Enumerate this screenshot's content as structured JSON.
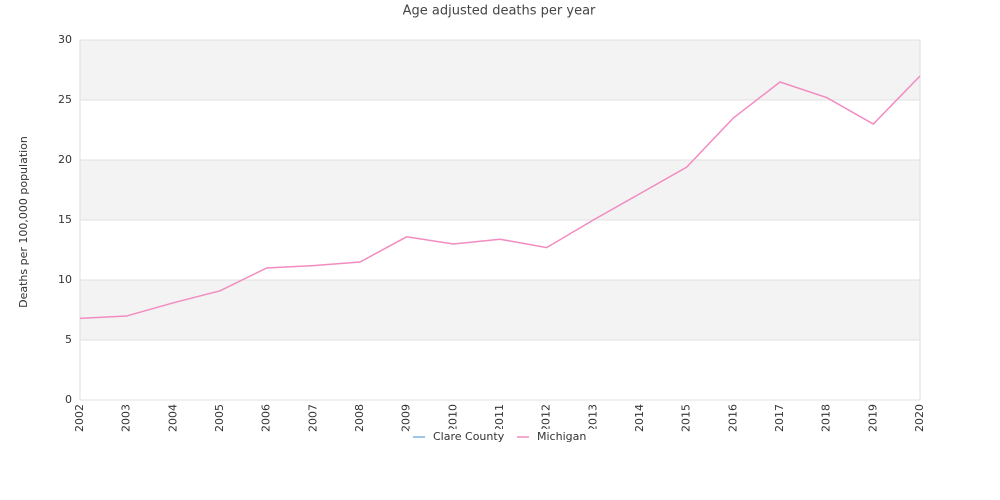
{
  "chart_data": {
    "type": "line",
    "title": "Age adjusted deaths per year",
    "y_label": "Deaths per 100,000 population",
    "categories": [
      "2002",
      "2003",
      "2004",
      "2005",
      "2006",
      "2007",
      "2008",
      "2009",
      "2010",
      "2011",
      "2012",
      "2013",
      "2014",
      "2015",
      "2016",
      "2017",
      "2018",
      "2019",
      "2020"
    ],
    "series": [
      {
        "name": "Clare County",
        "color": "#7fb3e0",
        "values": [
          null,
          null,
          null,
          null,
          null,
          null,
          null,
          null,
          null,
          null,
          null,
          null,
          null,
          null,
          null,
          null,
          null,
          null,
          null
        ]
      },
      {
        "name": "Michigan",
        "color": "#f28cc0",
        "values": [
          6.8,
          7.0,
          8.1,
          9.1,
          11.0,
          11.2,
          11.5,
          13.6,
          13.0,
          13.4,
          12.7,
          15.0,
          17.2,
          19.4,
          23.5,
          26.5,
          25.2,
          23.0,
          27.0
        ]
      }
    ],
    "ylim": [
      0,
      30
    ],
    "yticks": [
      0,
      5,
      10,
      15,
      20,
      25,
      30
    ],
    "grid": true,
    "legend": "bottom"
  }
}
